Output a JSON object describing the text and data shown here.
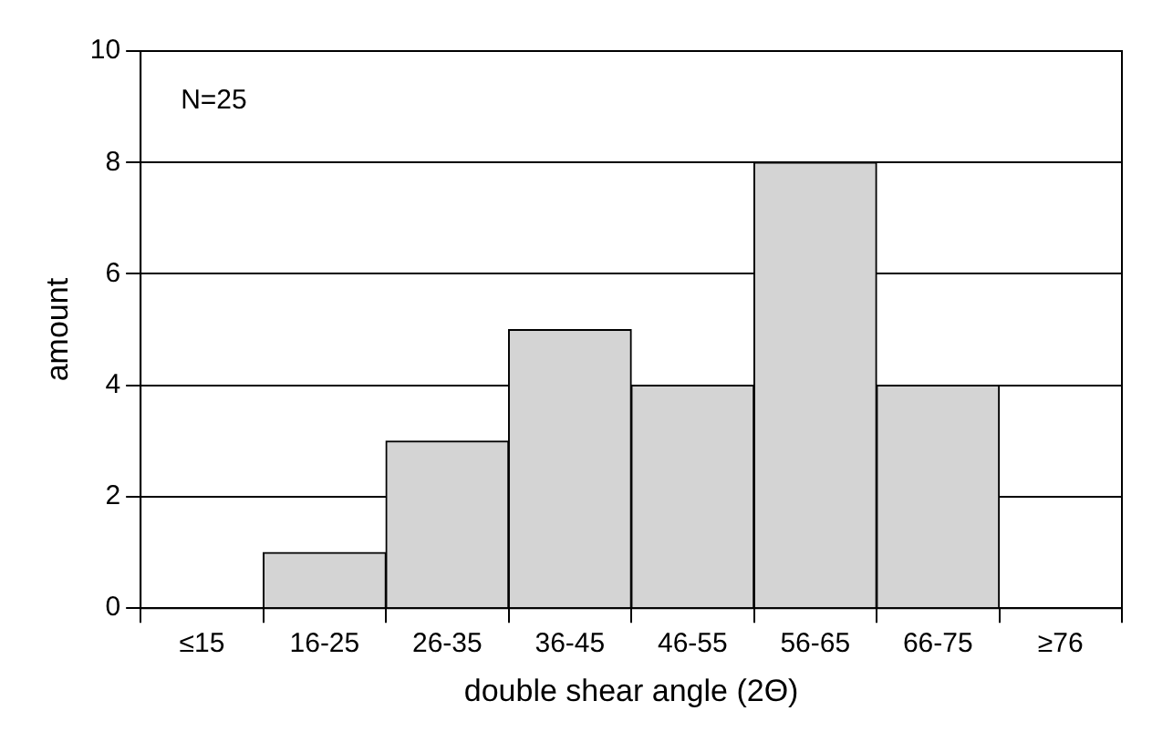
{
  "chart_data": {
    "type": "bar",
    "xlabel": "double shear angle (2Θ)",
    "ylabel": "amount",
    "categories": [
      "≤15",
      "16-25",
      "26-35",
      "36-45",
      "46-55",
      "56-65",
      "66-75",
      "≥76"
    ],
    "values": [
      0,
      1,
      3,
      5,
      4,
      8,
      4,
      0
    ],
    "color": "#d4d4d4",
    "ylim": [
      0,
      10
    ],
    "yticks": [
      0,
      2,
      4,
      6,
      8,
      10
    ],
    "grid": "y",
    "annotations": [
      "N=25"
    ]
  }
}
